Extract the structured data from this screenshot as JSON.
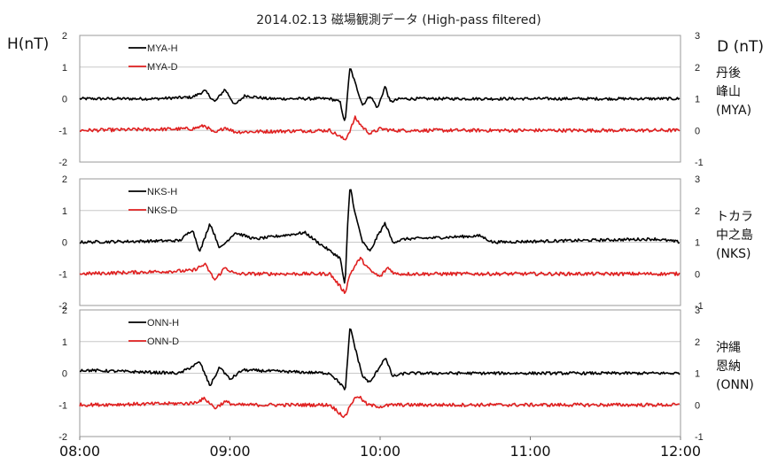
{
  "chart_data": {
    "type": "line",
    "title": "2014.02.13 磁場観測データ (High-pass filtered)",
    "ylabel_left": "H(nT)",
    "ylabel_right": "D (nT)",
    "x_ticks": [
      "08:00",
      "09:00",
      "10:00",
      "11:00",
      "12:00"
    ],
    "x_range": [
      "08:00",
      "12:00"
    ],
    "colors": {
      "H": "#000000",
      "D": "#e02020"
    },
    "panels": [
      {
        "station_lines": [
          "丹後",
          "峰山",
          "(MYA)"
        ],
        "left_ylim": [
          -2,
          2
        ],
        "left_ticks": [
          "2",
          "1",
          "0",
          "-1",
          "-2"
        ],
        "right_ylim": [
          -1,
          3
        ],
        "right_ticks": [
          "3",
          "2",
          "1",
          "0",
          "-1"
        ],
        "series": [
          {
            "name": "MYA-H",
            "axis": "left",
            "color": "#000000",
            "points": [
              [
                "08:00",
                0.0
              ],
              [
                "08:30",
                0.0
              ],
              [
                "08:45",
                0.05
              ],
              [
                "08:50",
                0.25
              ],
              [
                "08:54",
                -0.1
              ],
              [
                "08:58",
                0.3
              ],
              [
                "09:02",
                -0.2
              ],
              [
                "09:06",
                0.1
              ],
              [
                "09:15",
                0.0
              ],
              [
                "09:40",
                0.0
              ],
              [
                "09:44",
                -0.1
              ],
              [
                "09:46",
                -0.8
              ],
              [
                "09:47",
                0.2
              ],
              [
                "09:48",
                1.0
              ],
              [
                "09:50",
                0.5
              ],
              [
                "09:53",
                -0.2
              ],
              [
                "09:56",
                0.1
              ],
              [
                "09:59",
                -0.3
              ],
              [
                "10:02",
                0.4
              ],
              [
                "10:04",
                -0.1
              ],
              [
                "10:08",
                0.0
              ],
              [
                "12:00",
                0.0
              ]
            ]
          },
          {
            "name": "MYA-D",
            "axis": "right",
            "color": "#e02020",
            "points": [
              [
                "08:00",
                0.0
              ],
              [
                "08:45",
                0.05
              ],
              [
                "08:50",
                0.15
              ],
              [
                "08:54",
                -0.1
              ],
              [
                "08:58",
                0.1
              ],
              [
                "09:02",
                -0.05
              ],
              [
                "09:40",
                0.0
              ],
              [
                "09:46",
                -0.3
              ],
              [
                "09:48",
                0.0
              ],
              [
                "09:50",
                0.4
              ],
              [
                "09:53",
                0.1
              ],
              [
                "09:56",
                -0.1
              ],
              [
                "10:00",
                0.05
              ],
              [
                "10:05",
                0.0
              ],
              [
                "12:00",
                0.0
              ]
            ]
          }
        ]
      },
      {
        "station_lines": [
          "トカラ",
          "中之島",
          "(NKS)"
        ],
        "left_ylim": [
          -2,
          2
        ],
        "left_ticks": [
          "2",
          "1",
          "0",
          "-1",
          "-2"
        ],
        "right_ylim": [
          -1,
          3
        ],
        "right_ticks": [
          "3",
          "2",
          "1",
          "0",
          "-1"
        ],
        "series": [
          {
            "name": "NKS-H",
            "axis": "left",
            "color": "#000000",
            "points": [
              [
                "08:00",
                0.0
              ],
              [
                "08:40",
                0.05
              ],
              [
                "08:45",
                0.4
              ],
              [
                "08:48",
                -0.3
              ],
              [
                "08:52",
                0.6
              ],
              [
                "08:56",
                -0.2
              ],
              [
                "09:02",
                0.3
              ],
              [
                "09:10",
                0.1
              ],
              [
                "09:30",
                0.3
              ],
              [
                "09:35",
                0.0
              ],
              [
                "09:44",
                -0.5
              ],
              [
                "09:46",
                -1.4
              ],
              [
                "09:47",
                0.5
              ],
              [
                "09:48",
                1.8
              ],
              [
                "09:50",
                0.9
              ],
              [
                "09:53",
                0.0
              ],
              [
                "09:56",
                -0.3
              ],
              [
                "09:59",
                0.2
              ],
              [
                "10:02",
                0.6
              ],
              [
                "10:05",
                0.0
              ],
              [
                "10:10",
                0.1
              ],
              [
                "10:40",
                0.2
              ],
              [
                "10:45",
                0.0
              ],
              [
                "11:50",
                0.1
              ],
              [
                "12:00",
                0.0
              ]
            ]
          },
          {
            "name": "NKS-D",
            "axis": "right",
            "color": "#e02020",
            "points": [
              [
                "08:00",
                0.0
              ],
              [
                "08:45",
                0.1
              ],
              [
                "08:50",
                0.3
              ],
              [
                "08:54",
                -0.2
              ],
              [
                "08:58",
                0.2
              ],
              [
                "09:02",
                0.0
              ],
              [
                "09:40",
                0.0
              ],
              [
                "09:45",
                -0.5
              ],
              [
                "09:46",
                -0.6
              ],
              [
                "09:48",
                0.0
              ],
              [
                "09:52",
                0.5
              ],
              [
                "09:56",
                0.1
              ],
              [
                "10:00",
                -0.1
              ],
              [
                "10:03",
                0.2
              ],
              [
                "10:06",
                0.0
              ],
              [
                "12:00",
                0.0
              ]
            ]
          }
        ]
      },
      {
        "station_lines": [
          "沖縄",
          "恩納",
          "(ONN)"
        ],
        "left_ylim": [
          -2,
          2
        ],
        "left_ticks": [
          "2",
          "1",
          "0",
          "-1",
          "-2"
        ],
        "right_ylim": [
          -1,
          3
        ],
        "right_ticks": [
          "3",
          "2",
          "1",
          "0",
          "-1"
        ],
        "series": [
          {
            "name": "ONN-H",
            "axis": "left",
            "color": "#000000",
            "points": [
              [
                "08:00",
                0.1
              ],
              [
                "08:40",
                0.0
              ],
              [
                "08:48",
                0.35
              ],
              [
                "08:52",
                -0.4
              ],
              [
                "08:56",
                0.2
              ],
              [
                "09:00",
                -0.2
              ],
              [
                "09:05",
                0.1
              ],
              [
                "09:40",
                0.0
              ],
              [
                "09:45",
                -0.4
              ],
              [
                "09:46",
                -0.6
              ],
              [
                "09:47",
                0.4
              ],
              [
                "09:48",
                1.5
              ],
              [
                "09:50",
                0.8
              ],
              [
                "09:53",
                -0.1
              ],
              [
                "09:56",
                -0.3
              ],
              [
                "09:59",
                0.1
              ],
              [
                "10:02",
                0.5
              ],
              [
                "10:05",
                -0.1
              ],
              [
                "10:10",
                0.0
              ],
              [
                "12:00",
                0.0
              ]
            ]
          },
          {
            "name": "ONN-D",
            "axis": "right",
            "color": "#e02020",
            "points": [
              [
                "08:00",
                0.0
              ],
              [
                "08:45",
                0.05
              ],
              [
                "08:50",
                0.2
              ],
              [
                "08:54",
                -0.1
              ],
              [
                "08:58",
                0.1
              ],
              [
                "09:02",
                0.0
              ],
              [
                "09:40",
                0.0
              ],
              [
                "09:46",
                -0.4
              ],
              [
                "09:48",
                0.0
              ],
              [
                "09:51",
                0.3
              ],
              [
                "09:55",
                0.0
              ],
              [
                "10:00",
                -0.05
              ],
              [
                "10:05",
                0.0
              ],
              [
                "12:00",
                0.0
              ]
            ]
          }
        ]
      }
    ]
  }
}
